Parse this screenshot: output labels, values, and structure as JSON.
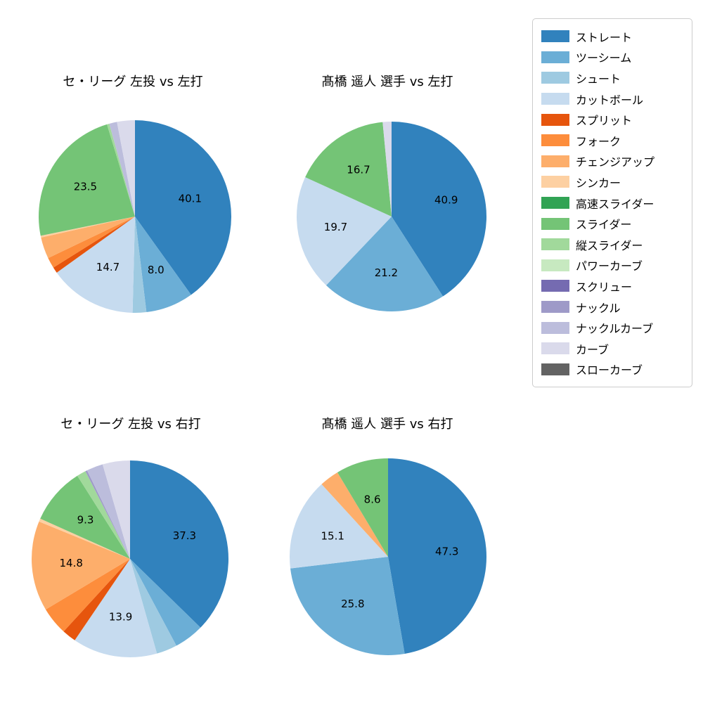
{
  "figure": {
    "background": "#ffffff",
    "label_text_color": "#000000"
  },
  "legend": {
    "position": "top-right",
    "items": [
      {
        "label": "ストレート",
        "color": "#3182bd"
      },
      {
        "label": "ツーシーム",
        "color": "#6baed6"
      },
      {
        "label": "シュート",
        "color": "#9ecae1"
      },
      {
        "label": "カットボール",
        "color": "#c6dbef"
      },
      {
        "label": "スプリット",
        "color": "#e6550d"
      },
      {
        "label": "フォーク",
        "color": "#fd8d3c"
      },
      {
        "label": "チェンジアップ",
        "color": "#fdae6b"
      },
      {
        "label": "シンカー",
        "color": "#fdd0a2"
      },
      {
        "label": "高速スライダー",
        "color": "#31a354"
      },
      {
        "label": "スライダー",
        "color": "#74c476"
      },
      {
        "label": "縦スライダー",
        "color": "#a1d99b"
      },
      {
        "label": "パワーカーブ",
        "color": "#c7e9c0"
      },
      {
        "label": "スクリュー",
        "color": "#756bb1"
      },
      {
        "label": "ナックル",
        "color": "#9e9ac8"
      },
      {
        "label": "ナックルカーブ",
        "color": "#bcbddc"
      },
      {
        "label": "カーブ",
        "color": "#dadaeb"
      },
      {
        "label": "スローカーブ",
        "color": "#636363"
      }
    ]
  },
  "chart_data": [
    {
      "type": "pie",
      "title": "セ・リーグ 左投 vs 左打",
      "start_angle_deg": 90,
      "direction": "clockwise",
      "label_min_pct": 5,
      "label_distance": 0.6,
      "slices": [
        {
          "name": "ストレート",
          "value": 40.1
        },
        {
          "name": "ツーシーム",
          "value": 8.0
        },
        {
          "name": "シュート",
          "value": 2.3
        },
        {
          "name": "カットボール",
          "value": 14.7
        },
        {
          "name": "スプリット",
          "value": 1.0
        },
        {
          "name": "フォーク",
          "value": 1.8
        },
        {
          "name": "チェンジアップ",
          "value": 3.6
        },
        {
          "name": "シンカー",
          "value": 0.3
        },
        {
          "name": "スライダー",
          "value": 23.5
        },
        {
          "name": "縦スライダー",
          "value": 0.4
        },
        {
          "name": "ナックルカーブ",
          "value": 1.3
        },
        {
          "name": "カーブ",
          "value": 3.0
        }
      ]
    },
    {
      "type": "pie",
      "title": "髙橋 遥人 選手 vs 左打",
      "start_angle_deg": 90,
      "direction": "clockwise",
      "label_min_pct": 5,
      "label_distance": 0.6,
      "slices": [
        {
          "name": "ストレート",
          "value": 40.9
        },
        {
          "name": "ツーシーム",
          "value": 21.2
        },
        {
          "name": "カットボール",
          "value": 19.7
        },
        {
          "name": "スライダー",
          "value": 16.7
        },
        {
          "name": "カーブ",
          "value": 1.5
        }
      ]
    },
    {
      "type": "pie",
      "title": "セ・リーグ 左投 vs 右打",
      "start_angle_deg": 90,
      "direction": "clockwise",
      "label_min_pct": 5,
      "label_distance": 0.6,
      "slices": [
        {
          "name": "ストレート",
          "value": 37.3
        },
        {
          "name": "ツーシーム",
          "value": 4.9
        },
        {
          "name": "シュート",
          "value": 3.4
        },
        {
          "name": "カットボール",
          "value": 13.9
        },
        {
          "name": "スプリット",
          "value": 2.3
        },
        {
          "name": "フォーク",
          "value": 4.6
        },
        {
          "name": "チェンジアップ",
          "value": 14.8
        },
        {
          "name": "シンカー",
          "value": 0.5
        },
        {
          "name": "スライダー",
          "value": 9.3
        },
        {
          "name": "縦スライダー",
          "value": 1.5
        },
        {
          "name": "ナックル",
          "value": 0.3
        },
        {
          "name": "ナックルカーブ",
          "value": 2.7
        },
        {
          "name": "カーブ",
          "value": 4.5
        }
      ]
    },
    {
      "type": "pie",
      "title": "髙橋 遥人 選手 vs 右打",
      "start_angle_deg": 90,
      "direction": "clockwise",
      "label_min_pct": 5,
      "label_distance": 0.6,
      "slices": [
        {
          "name": "ストレート",
          "value": 47.3
        },
        {
          "name": "ツーシーム",
          "value": 25.8
        },
        {
          "name": "カットボール",
          "value": 15.1
        },
        {
          "name": "チェンジアップ",
          "value": 3.2
        },
        {
          "name": "スライダー",
          "value": 8.6
        }
      ]
    }
  ]
}
